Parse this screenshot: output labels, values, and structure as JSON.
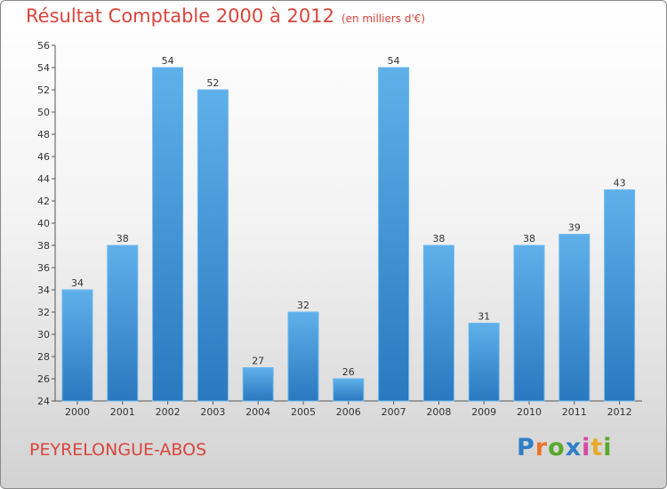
{
  "title": "Résultat Comptable 2000 à 2012",
  "subtitle": "(en milliers d'€)",
  "commune": "PEYRELONGUE-ABOS",
  "brand": {
    "letters": [
      "P",
      "r",
      "o",
      "x",
      "i",
      "t",
      "i"
    ],
    "colors": [
      "#2f7fc6",
      "#e8742a",
      "#5aa82c",
      "#2f7fc6",
      "#d64aa5",
      "#e8a82a",
      "#5aa82c"
    ]
  },
  "colors": {
    "bar": "#4fa3e2",
    "bar_dark": "#2a78bf",
    "title": "#d9453b"
  },
  "chart_data": {
    "type": "bar",
    "categories": [
      "2000",
      "2001",
      "2002",
      "2003",
      "2004",
      "2005",
      "2006",
      "2007",
      "2008",
      "2009",
      "2010",
      "2011",
      "2012"
    ],
    "values": [
      34,
      38,
      54,
      52,
      27,
      32,
      26,
      54,
      38,
      31,
      38,
      39,
      43
    ],
    "ylim": [
      24,
      56
    ],
    "yticks": [
      24,
      26,
      28,
      30,
      32,
      34,
      36,
      38,
      40,
      42,
      44,
      46,
      48,
      50,
      52,
      54,
      56
    ],
    "title": "Résultat Comptable 2000 à 2012",
    "xlabel": "",
    "ylabel": "",
    "grid": false
  }
}
